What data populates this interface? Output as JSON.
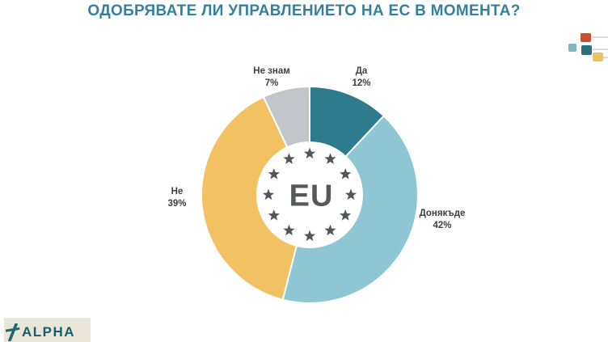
{
  "title": "ОДОБРЯВАТЕ ЛИ УПРАВЛЕНИЕТО НА ЕС В МОМЕНТА?",
  "title_color": "#35809e",
  "chart_data": {
    "type": "pie",
    "donut": true,
    "title": "ОДОБРЯВАТЕ ЛИ УПРАВЛЕНИЕТО НА ЕС В МОМЕНТА?",
    "center_label": "EU",
    "start_angle_deg": -90,
    "direction": "clockwise",
    "categories": [
      "Да",
      "Донякъде",
      "Не",
      "Не знам"
    ],
    "values": [
      12,
      42,
      39,
      7
    ],
    "slices": [
      {
        "label": "Да",
        "value": 12,
        "percent_label": "12%",
        "color": "#2e7b90"
      },
      {
        "label": "Донякъде",
        "value": 42,
        "percent_label": "42%",
        "color": "#8fc6d4"
      },
      {
        "label": "Не",
        "value": 39,
        "percent_label": "39%",
        "color": "#f2c262"
      },
      {
        "label": "Не знам",
        "value": 7,
        "percent_label": "7%",
        "color": "#c2c6ca"
      }
    ]
  },
  "eu_emblem": {
    "text": "EU",
    "star_color": "#50565b",
    "text_color": "#54595d",
    "circle_color": "#ffffff"
  },
  "decoration": {
    "square_red": "#c94f33",
    "square_light_teal": "#7fb6bd",
    "square_dark_teal": "#2c6f80",
    "square_yellow": "#ecc25f",
    "line_color": "#dcdcdc"
  },
  "footer_logo": {
    "text": "ALPHA",
    "color": "#155f68",
    "bg": "#e9e5d8"
  }
}
